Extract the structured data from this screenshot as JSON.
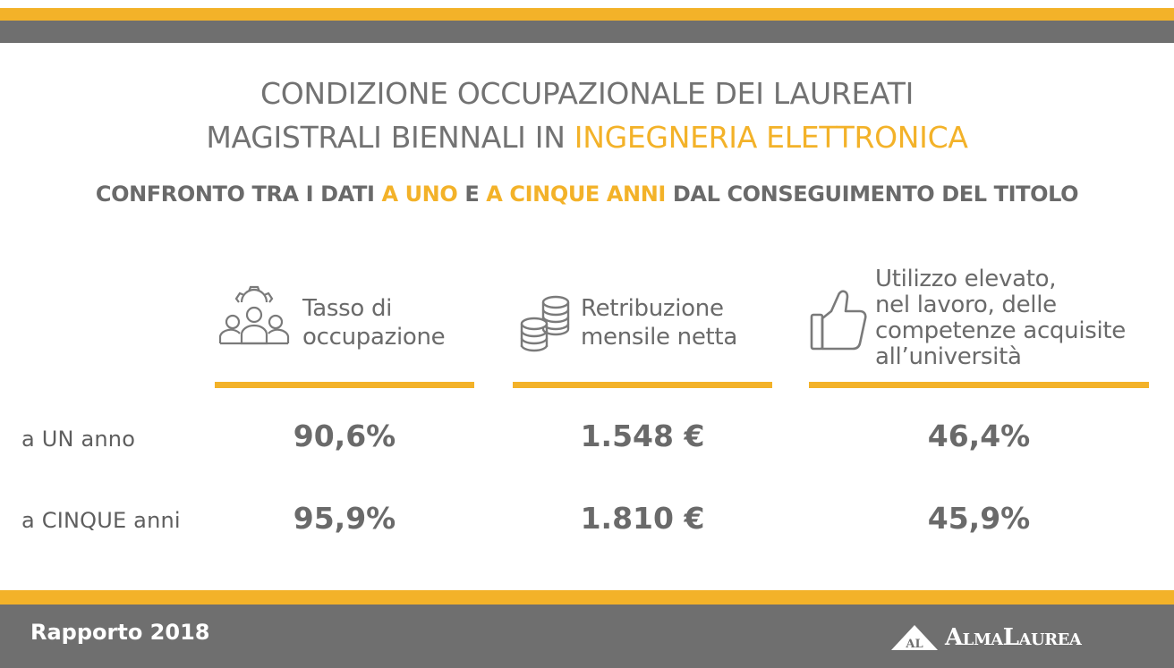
{
  "header": {
    "title_line1": "CONDIZIONE OCCUPAZIONALE DEI LAUREATI",
    "title_line2_prefix": "MAGISTRALI BIENNALI IN ",
    "title_line2_highlight": "INGEGNERIA ELETTRONICA",
    "subtitle_part1": "CONFRONTO TRA I DATI ",
    "subtitle_highlight1": "A UNO",
    "subtitle_part2": " E ",
    "subtitle_highlight2": "A CINQUE ANNI",
    "subtitle_part3": " DAL CONSEGUIMENTO DEL TITOLO"
  },
  "columns": [
    {
      "label_lines": [
        "Tasso di",
        "occupazione"
      ],
      "icon": "people-gear-icon"
    },
    {
      "label_lines": [
        "Retribuzione",
        "mensile netta"
      ],
      "icon": "coins-icon"
    },
    {
      "label_lines": [
        "Utilizzo elevato,",
        "nel lavoro, delle",
        "competenze acquisite",
        "all’università"
      ],
      "icon": "thumbs-up-icon"
    }
  ],
  "rows": [
    {
      "label": "a UN anno",
      "values": [
        "90,6%",
        "1.548 €",
        "46,4%"
      ]
    },
    {
      "label": "a CINQUE anni",
      "values": [
        "95,9%",
        "1.810 €",
        "45,9%"
      ]
    }
  ],
  "footer": {
    "report": "Rapporto 2018",
    "logo_mark": "AL",
    "logo_text": "AlmaLaurea"
  },
  "colors": {
    "accent": "#f3b229",
    "bar_gray": "#6f6f6f",
    "text": "#6a6a6a"
  }
}
